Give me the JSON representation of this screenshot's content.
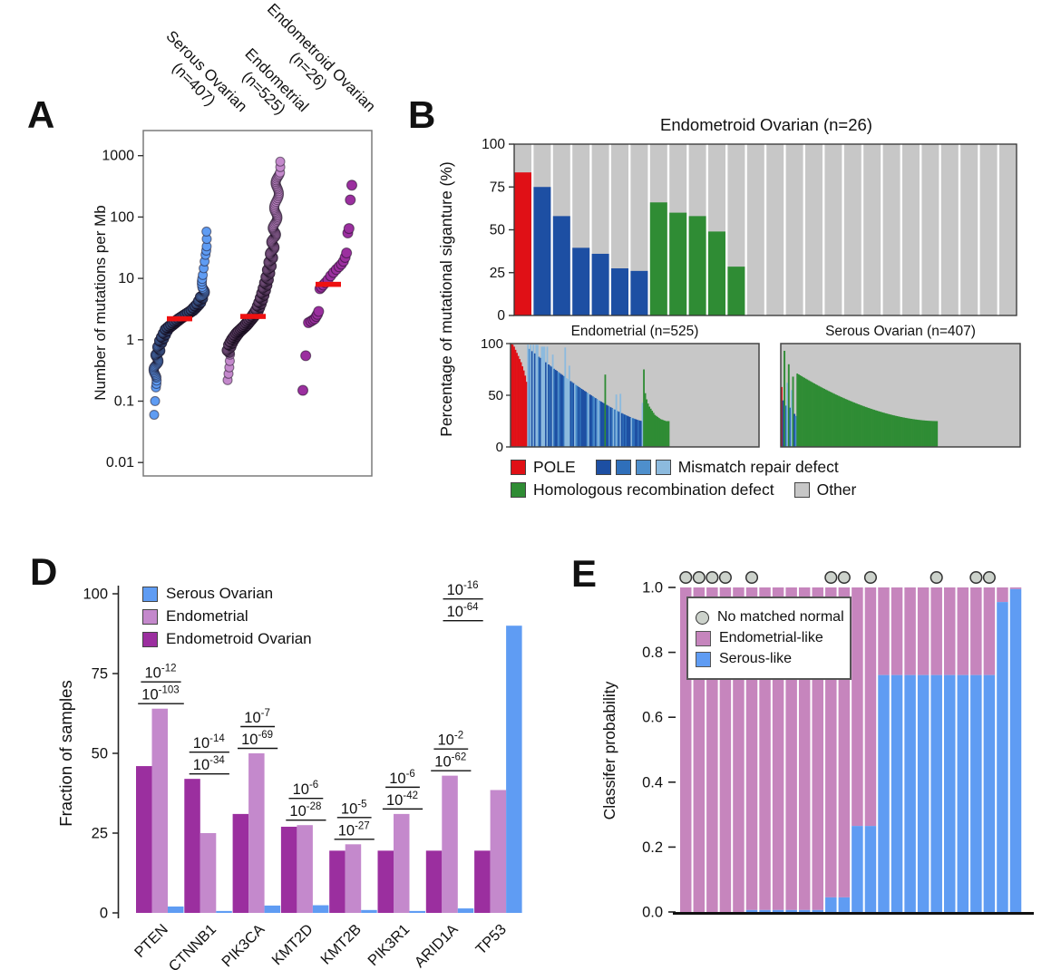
{
  "colors": {
    "serous_blue": "#5f9cf3",
    "endometrial_orchid": "#c489cc",
    "endometroid_magenta": "#9b2f9f",
    "median_red": "#ee1111",
    "pole_red": "#e01016",
    "mmr_shades": [
      "#1d4fa3",
      "#2f6fba",
      "#4e8fcc",
      "#8cbade"
    ],
    "hrd_green": "#2f8c34",
    "other_gray": "#c7c7c7",
    "panel_e_pink": "#c685bd",
    "panel_e_blue": "#5f9cf3",
    "circle_gray": "#ccd2cb"
  },
  "panels": {
    "a": "A",
    "b": "B",
    "d": "D",
    "e": "E"
  },
  "panel_a": {
    "y_axis_label": "Number of mutations per Mb",
    "groups": [
      {
        "line1": "Serous Ovarian",
        "line2": "(n=407)"
      },
      {
        "line1": "Endometrial",
        "line2": "(n=525)"
      },
      {
        "line1": "Endometroid Ovarian",
        "line2": "(n=26)"
      }
    ]
  },
  "panel_b": {
    "y_axis_label": "Percentage of mutational siganture (%)",
    "title_top": "Endometroid Ovarian (n=26)",
    "title_endometrial": "Endometrial (n=525)",
    "title_serous": "Serous Ovarian (n=407)",
    "legend": {
      "pole": "POLE",
      "mmr": "Mismatch repair defect",
      "hrd": "Homologous recombination defect",
      "other": "Other"
    }
  },
  "panel_d": {
    "y_axis_label": "Fraction of samples",
    "legend": [
      "Serous Ovarian",
      "Endometrial",
      "Endometroid Ovarian"
    ]
  },
  "panel_e": {
    "y_axis_label": "Classifer probability",
    "legend": {
      "circle": "No matched normal",
      "pink": "Endometrial-like",
      "blue": "Serous-like"
    }
  },
  "chart_data": [
    {
      "id": "panel_a",
      "type": "scatter",
      "ylabel": "Number of mutations per Mb",
      "yscale": "log",
      "ylim": [
        0.01,
        2000
      ],
      "y_ticks": [
        "1000",
        "100",
        "10",
        "1",
        "0.1",
        "0.01"
      ],
      "series": [
        {
          "name": "Serous Ovarian",
          "n": 407,
          "median": 2.2,
          "quantile_curve": [
            [
              0,
              0.06
            ],
            [
              0.005,
              0.17
            ],
            [
              0.012,
              0.24
            ],
            [
              0.03,
              0.35
            ],
            [
              0.06,
              0.55
            ],
            [
              0.12,
              0.9
            ],
            [
              0.25,
              1.5
            ],
            [
              0.5,
              2.2
            ],
            [
              0.75,
              3.0
            ],
            [
              0.88,
              3.9
            ],
            [
              0.95,
              5.2
            ],
            [
              0.972,
              7.0
            ],
            [
              0.982,
              10.5
            ],
            [
              0.99,
              24
            ],
            [
              0.995,
              33
            ],
            [
              1,
              58
            ]
          ]
        },
        {
          "name": "Endometrial",
          "n": 525,
          "median": 2.4,
          "quantile_curve": [
            [
              0,
              0.22
            ],
            [
              0.008,
              0.6
            ],
            [
              0.04,
              0.8
            ],
            [
              0.1,
              1.0
            ],
            [
              0.2,
              1.3
            ],
            [
              0.35,
              1.7
            ],
            [
              0.5,
              2.4
            ],
            [
              0.58,
              3.0
            ],
            [
              0.65,
              4.2
            ],
            [
              0.72,
              6.5
            ],
            [
              0.78,
              10
            ],
            [
              0.83,
              16
            ],
            [
              0.87,
              25
            ],
            [
              0.9,
              40
            ],
            [
              0.93,
              70
            ],
            [
              0.955,
              140
            ],
            [
              0.975,
              280
            ],
            [
              0.99,
              440
            ],
            [
              0.996,
              520
            ],
            [
              1,
              800
            ]
          ]
        },
        {
          "name": "Endometroid Ovarian",
          "n": 26,
          "median": 8,
          "values": [
            0.15,
            0.55,
            1.9,
            2.0,
            2.1,
            2.2,
            2.4,
            2.6,
            2.9,
            6.8,
            7.2,
            7.8,
            8.5,
            9.5,
            11,
            12.5,
            14,
            15.5,
            17,
            19,
            22,
            26,
            55,
            65,
            190,
            330
          ]
        }
      ]
    },
    {
      "id": "panel_b_top",
      "type": "stacked-bar",
      "title": "Endometroid Ovarian (n=26)",
      "y_ticks": [
        100,
        75,
        50,
        25,
        0
      ],
      "bars": [
        {
          "cat": "pole",
          "v": 83.5
        },
        {
          "cat": "mmr",
          "v": 75
        },
        {
          "cat": "mmr",
          "v": 58
        },
        {
          "cat": "mmr",
          "v": 39.5
        },
        {
          "cat": "mmr",
          "v": 36
        },
        {
          "cat": "mmr",
          "v": 27.5
        },
        {
          "cat": "mmr",
          "v": 26
        },
        {
          "cat": "hrd",
          "v": 66
        },
        {
          "cat": "hrd",
          "v": 60
        },
        {
          "cat": "hrd",
          "v": 58
        },
        {
          "cat": "hrd",
          "v": 49
        },
        {
          "cat": "hrd",
          "v": 28.5
        },
        {
          "cat": "other",
          "v": 0
        },
        {
          "cat": "other",
          "v": 0
        },
        {
          "cat": "other",
          "v": 0
        },
        {
          "cat": "other",
          "v": 0
        },
        {
          "cat": "other",
          "v": 0
        },
        {
          "cat": "other",
          "v": 0
        },
        {
          "cat": "other",
          "v": 0
        },
        {
          "cat": "other",
          "v": 0
        },
        {
          "cat": "other",
          "v": 0
        },
        {
          "cat": "other",
          "v": 0
        },
        {
          "cat": "other",
          "v": 0
        },
        {
          "cat": "other",
          "v": 0
        },
        {
          "cat": "other",
          "v": 0
        },
        {
          "cat": "other",
          "v": 0
        }
      ]
    },
    {
      "id": "panel_b_endometrial",
      "type": "signature-area",
      "title": "Endometrial (n=525)",
      "y_ticks": [
        100,
        50,
        0
      ],
      "pole_slices": [
        100,
        99,
        97,
        94,
        91,
        88,
        85,
        82,
        78,
        74,
        69,
        63
      ],
      "mmr": {
        "count": 84,
        "from": 96,
        "to": 25,
        "power": 1.3,
        "green_spike_index": 56,
        "green_spike_value": 70
      },
      "hrd_slices": [
        75,
        52,
        46,
        42,
        39,
        37,
        35,
        33,
        31,
        30,
        29,
        28,
        27,
        26.5,
        26,
        25.5,
        25,
        25,
        25
      ],
      "other_count": 65
    },
    {
      "id": "panel_b_serous",
      "type": "signature-area",
      "title": "Serous Ovarian (n=407)",
      "pole_slices": [
        58
      ],
      "mmr_slices": [
        {
          "c": "mmr0",
          "v": 45
        },
        {
          "c": "hrd",
          "v": 93
        },
        {
          "c": "mmr1",
          "v": 40
        },
        {
          "c": "mmr3",
          "v": 62
        },
        {
          "c": "hrd",
          "v": 80
        },
        {
          "c": "mmr1",
          "v": 38
        },
        {
          "c": "mmr3",
          "v": 55
        },
        {
          "c": "hrd",
          "v": 68
        },
        {
          "c": "mmr0",
          "v": 32
        },
        {
          "c": "mmr2",
          "v": 30
        }
      ],
      "hrd": {
        "count": 99,
        "from": 71,
        "to": 25,
        "power": 1.8
      },
      "other_count": 58
    },
    {
      "id": "panel_d",
      "type": "grouped-bar",
      "ylabel": "Fraction of samples",
      "y_ticks": [
        100,
        75,
        50,
        25,
        0
      ],
      "ylim": [
        0,
        100
      ],
      "categories": [
        "PTEN",
        "CTNNB1",
        "PIK3CA",
        "KMT2D",
        "KMT2B",
        "PIK3R1",
        "ARID1A",
        "TP53"
      ],
      "series": [
        {
          "name": "Endometroid Ovarian",
          "values": [
            46,
            42,
            31,
            27,
            19.5,
            19.5,
            19.5,
            19.5
          ]
        },
        {
          "name": "Endometrial",
          "values": [
            64,
            25,
            50,
            27.5,
            21.5,
            31,
            43,
            38.5
          ]
        },
        {
          "name": "Serous Ovarian",
          "values": [
            2,
            0.6,
            2.3,
            2.4,
            0.9,
            0.6,
            1.4,
            90
          ]
        }
      ],
      "p_values": [
        {
          "upper": "-12",
          "lower": "-103"
        },
        {
          "upper": "-14",
          "lower": "-34"
        },
        {
          "upper": "-7",
          "lower": "-69"
        },
        {
          "upper": "-6",
          "lower": "-28"
        },
        {
          "upper": "-5",
          "lower": "-27"
        },
        {
          "upper": "-6",
          "lower": "-42"
        },
        {
          "upper": "-2",
          "lower": "-62"
        },
        {
          "upper": "-16",
          "lower": "-64"
        }
      ]
    },
    {
      "id": "panel_e",
      "type": "stacked-bar",
      "ylabel": "Classifer probability",
      "y_ticks": [
        "1.0",
        "0.8",
        "0.6",
        "0.4",
        "0.2",
        "0.0"
      ],
      "ylim": [
        0,
        1
      ],
      "serous_prob": [
        0,
        0,
        0,
        0,
        0,
        0.006,
        0.006,
        0.006,
        0.006,
        0.006,
        0.006,
        0.045,
        0.045,
        0.265,
        0.265,
        0.73,
        0.73,
        0.73,
        0.73,
        0.73,
        0.73,
        0.73,
        0.73,
        0.73,
        0.955,
        0.995
      ],
      "no_matched_normal_bars": [
        1,
        2,
        3,
        4,
        6,
        12,
        13,
        15,
        20,
        23,
        24
      ]
    }
  ]
}
